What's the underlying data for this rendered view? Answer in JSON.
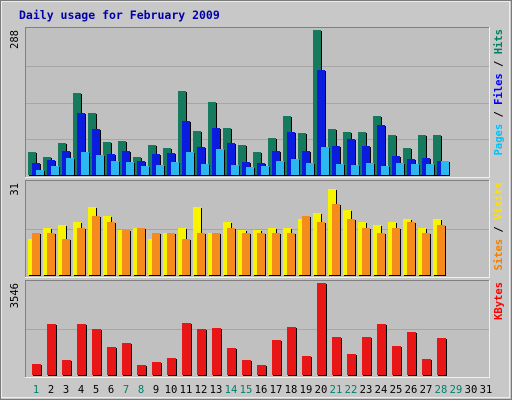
{
  "chart_data": {
    "type": "bar",
    "title": "Daily usage for February 2009",
    "days": [
      "1",
      "2",
      "3",
      "4",
      "5",
      "6",
      "7",
      "8",
      "9",
      "10",
      "11",
      "12",
      "13",
      "14",
      "15",
      "16",
      "17",
      "18",
      "19",
      "20",
      "21",
      "22",
      "23",
      "24",
      "25",
      "26",
      "27",
      "28",
      "29",
      "30",
      "31"
    ],
    "weekend_days": [
      "1",
      "7",
      "8",
      "14",
      "15",
      "21",
      "22",
      "28",
      "29"
    ],
    "panels": [
      {
        "max_label": "288",
        "ylim": [
          0,
          288
        ],
        "label_parts": [
          {
            "text": "Pages",
            "color": "#00c0ff"
          },
          {
            "text": " / ",
            "color": "#000000"
          },
          {
            "text": "Files",
            "color": "#0000ff"
          },
          {
            "text": " / ",
            "color": "#000000"
          },
          {
            "text": "Hits",
            "color": "#008060"
          }
        ],
        "series": [
          {
            "name": "Hits",
            "color": "#157a5e",
            "values": [
              46,
              36,
              64,
              162,
              124,
              66,
              68,
              36,
              60,
              54,
              166,
              88,
              145,
              94,
              60,
              46,
              74,
              118,
              84,
              288,
              92,
              86,
              86,
              118,
              80,
              54,
              80,
              80,
              0,
              0,
              0
            ]
          },
          {
            "name": "Files",
            "color": "#0a1cdf",
            "values": [
              24,
              30,
              48,
              124,
              92,
              42,
              48,
              28,
              42,
              44,
              108,
              56,
              94,
              64,
              26,
              24,
              48,
              86,
              48,
              208,
              58,
              72,
              58,
              100,
              38,
              32,
              34,
              28,
              0,
              0,
              0
            ]
          },
          {
            "name": "Pages",
            "color": "#2cb8ee",
            "values": [
              10,
              18,
              34,
              46,
              40,
              28,
              26,
              18,
              20,
              26,
              46,
              22,
              52,
              20,
              16,
              18,
              28,
              32,
              24,
              56,
              22,
              20,
              24,
              18,
              24,
              22,
              22,
              28,
              0,
              0,
              0
            ]
          }
        ]
      },
      {
        "max_label": "31",
        "ylim": [
          0,
          31
        ],
        "label_parts": [
          {
            "text": "Sites",
            "color": "#f08000"
          },
          {
            "text": " / ",
            "color": "#000000"
          },
          {
            "text": "Visits",
            "color": "#ffe000"
          }
        ],
        "series": [
          {
            "name": "Visits",
            "color": "#f8f400",
            "values": [
              12,
              16,
              17,
              18,
              23,
              20,
              15,
              16,
              12,
              14,
              16,
              23,
              14,
              18,
              15,
              15,
              16,
              16,
              19,
              21,
              29,
              22,
              18,
              17,
              18,
              19,
              16,
              19,
              0,
              0,
              0
            ]
          },
          {
            "name": "Sites",
            "color": "#f58a1d",
            "values": [
              14,
              14,
              12,
              16,
              20,
              18,
              15,
              16,
              14,
              14,
              12,
              14,
              14,
              16,
              14,
              14,
              14,
              14,
              20,
              18,
              24,
              19,
              16,
              14,
              16,
              18,
              14,
              17,
              0,
              0,
              0
            ]
          }
        ]
      },
      {
        "max_label": "3546",
        "ylim": [
          0,
          3546
        ],
        "label_parts": [
          {
            "text": "KBytes",
            "color": "#ff0000"
          }
        ],
        "series": [
          {
            "name": "KBytes",
            "color": "#e81616",
            "values": [
              430,
              1960,
              570,
              1960,
              1780,
              1080,
              1230,
              400,
              520,
              650,
              2010,
              1790,
              1800,
              1050,
              570,
              380,
              1360,
              1860,
              720,
              3546,
              1470,
              820,
              1460,
              1970,
              1110,
              1660,
              600,
              1410,
              0,
              0,
              0
            ]
          }
        ]
      }
    ]
  }
}
